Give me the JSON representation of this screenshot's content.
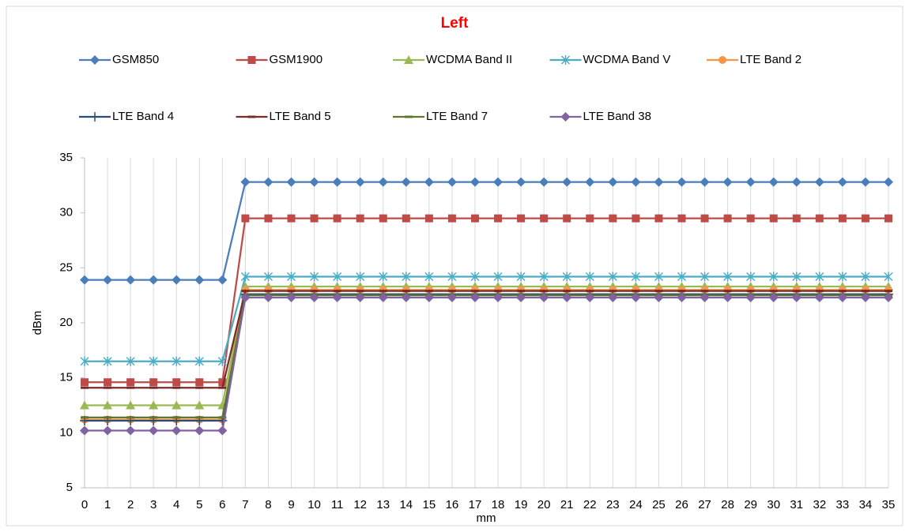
{
  "chart_data": {
    "type": "line",
    "title": "Left",
    "xlabel": "mm",
    "ylabel": "dBm",
    "x": [
      0,
      1,
      2,
      3,
      4,
      5,
      6,
      7,
      8,
      9,
      10,
      11,
      12,
      13,
      14,
      15,
      16,
      17,
      18,
      19,
      20,
      21,
      22,
      23,
      24,
      25,
      26,
      27,
      28,
      29,
      30,
      31,
      32,
      33,
      34,
      35
    ],
    "xlim": [
      0,
      35
    ],
    "ylim": [
      5,
      35
    ],
    "yticks": [
      5,
      10,
      15,
      20,
      25,
      30,
      35
    ],
    "grid": "x",
    "series": [
      {
        "name": "GSM850",
        "color": "#4a7ebb",
        "marker": "diamond",
        "values": [
          23.9,
          23.9,
          23.9,
          23.9,
          23.9,
          23.9,
          23.9,
          32.8,
          32.8,
          32.8,
          32.8,
          32.8,
          32.8,
          32.8,
          32.8,
          32.8,
          32.8,
          32.8,
          32.8,
          32.8,
          32.8,
          32.8,
          32.8,
          32.8,
          32.8,
          32.8,
          32.8,
          32.8,
          32.8,
          32.8,
          32.8,
          32.8,
          32.8,
          32.8,
          32.8,
          32.8
        ]
      },
      {
        "name": "GSM1900",
        "color": "#be4b48",
        "marker": "square",
        "values": [
          14.6,
          14.6,
          14.6,
          14.6,
          14.6,
          14.6,
          14.6,
          29.5,
          29.5,
          29.5,
          29.5,
          29.5,
          29.5,
          29.5,
          29.5,
          29.5,
          29.5,
          29.5,
          29.5,
          29.5,
          29.5,
          29.5,
          29.5,
          29.5,
          29.5,
          29.5,
          29.5,
          29.5,
          29.5,
          29.5,
          29.5,
          29.5,
          29.5,
          29.5,
          29.5,
          29.5
        ]
      },
      {
        "name": "WCDMA Band II",
        "color": "#98b954",
        "marker": "triangle",
        "values": [
          12.5,
          12.5,
          12.5,
          12.5,
          12.5,
          12.5,
          12.5,
          23.3,
          23.3,
          23.3,
          23.3,
          23.3,
          23.3,
          23.3,
          23.3,
          23.3,
          23.3,
          23.3,
          23.3,
          23.3,
          23.3,
          23.3,
          23.3,
          23.3,
          23.3,
          23.3,
          23.3,
          23.3,
          23.3,
          23.3,
          23.3,
          23.3,
          23.3,
          23.3,
          23.3,
          23.3
        ]
      },
      {
        "name": "WCDMA Band V",
        "color": "#4bacc6",
        "marker": "star",
        "values": [
          16.5,
          16.5,
          16.5,
          16.5,
          16.5,
          16.5,
          16.5,
          24.2,
          24.2,
          24.2,
          24.2,
          24.2,
          24.2,
          24.2,
          24.2,
          24.2,
          24.2,
          24.2,
          24.2,
          24.2,
          24.2,
          24.2,
          24.2,
          24.2,
          24.2,
          24.2,
          24.2,
          24.2,
          24.2,
          24.2,
          24.2,
          24.2,
          24.2,
          24.2,
          24.2,
          24.2
        ]
      },
      {
        "name": "LTE Band 2",
        "color": "#f79646",
        "marker": "circle",
        "values": [
          11.2,
          11.2,
          11.2,
          11.2,
          11.2,
          11.2,
          11.2,
          23.0,
          23.0,
          23.0,
          23.0,
          23.0,
          23.0,
          23.0,
          23.0,
          23.0,
          23.0,
          23.0,
          23.0,
          23.0,
          23.0,
          23.0,
          23.0,
          23.0,
          23.0,
          23.0,
          23.0,
          23.0,
          23.0,
          23.0,
          23.0,
          23.0,
          23.0,
          23.0,
          23.0,
          23.0
        ]
      },
      {
        "name": "LTE Band 4",
        "color": "#2c4d75",
        "marker": "plus",
        "values": [
          11.1,
          11.1,
          11.1,
          11.1,
          11.1,
          11.1,
          11.1,
          22.6,
          22.6,
          22.6,
          22.6,
          22.6,
          22.6,
          22.6,
          22.6,
          22.6,
          22.6,
          22.6,
          22.6,
          22.6,
          22.6,
          22.6,
          22.6,
          22.6,
          22.6,
          22.6,
          22.6,
          22.6,
          22.6,
          22.6,
          22.6,
          22.6,
          22.6,
          22.6,
          22.6,
          22.6
        ]
      },
      {
        "name": "LTE Band 5",
        "color": "#772c2a",
        "marker": "dash",
        "values": [
          14.1,
          14.1,
          14.1,
          14.1,
          14.1,
          14.1,
          14.1,
          22.9,
          22.9,
          22.9,
          22.9,
          22.9,
          22.9,
          22.9,
          22.9,
          22.9,
          22.9,
          22.9,
          22.9,
          22.9,
          22.9,
          22.9,
          22.9,
          22.9,
          22.9,
          22.9,
          22.9,
          22.9,
          22.9,
          22.9,
          22.9,
          22.9,
          22.9,
          22.9,
          22.9,
          22.9
        ]
      },
      {
        "name": "LTE Band 7",
        "color": "#5f7530",
        "marker": "dash",
        "values": [
          11.4,
          11.4,
          11.4,
          11.4,
          11.4,
          11.4,
          11.4,
          22.5,
          22.5,
          22.5,
          22.5,
          22.5,
          22.5,
          22.5,
          22.5,
          22.5,
          22.5,
          22.5,
          22.5,
          22.5,
          22.5,
          22.5,
          22.5,
          22.5,
          22.5,
          22.5,
          22.5,
          22.5,
          22.5,
          22.5,
          22.5,
          22.5,
          22.5,
          22.5,
          22.5,
          22.5
        ]
      },
      {
        "name": "LTE Band 38",
        "color": "#8064a2",
        "marker": "diamond",
        "values": [
          10.2,
          10.2,
          10.2,
          10.2,
          10.2,
          10.2,
          10.2,
          22.3,
          22.3,
          22.3,
          22.3,
          22.3,
          22.3,
          22.3,
          22.3,
          22.3,
          22.3,
          22.3,
          22.3,
          22.3,
          22.3,
          22.3,
          22.3,
          22.3,
          22.3,
          22.3,
          22.3,
          22.3,
          22.3,
          22.3,
          22.3,
          22.3,
          22.3,
          22.3,
          22.3,
          22.3
        ]
      }
    ]
  }
}
